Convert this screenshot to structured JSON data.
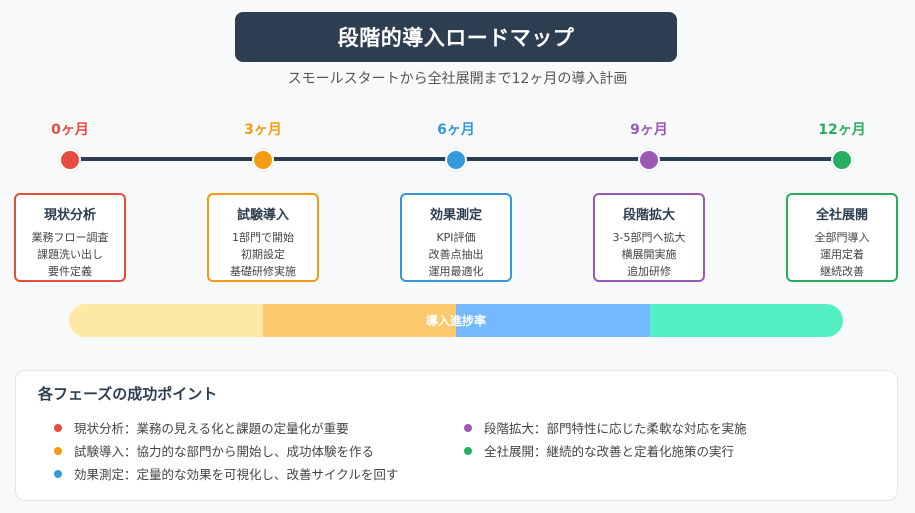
{
  "header": {
    "title": "段階的導入ロードマップ",
    "subtitle": "スモールスタートから全社展開まで12ヶ月の導入計画"
  },
  "milestones": [
    {
      "label": "0ヶ月",
      "color": "#e74c3c"
    },
    {
      "label": "3ヶ月",
      "color": "#f39c12"
    },
    {
      "label": "6ヶ月",
      "color": "#3498db"
    },
    {
      "label": "9ヶ月",
      "color": "#9b59b6"
    },
    {
      "label": "12ヶ月",
      "color": "#27ae60"
    }
  ],
  "phases": [
    {
      "name": "現状分析",
      "items": [
        "業務フロー調査",
        "課題洗い出し",
        "要件定義"
      ],
      "color": "#e74c3c"
    },
    {
      "name": "試験導入",
      "items": [
        "1部門で開始",
        "初期設定",
        "基礎研修実施"
      ],
      "color": "#f39c12"
    },
    {
      "name": "効果測定",
      "items": [
        "KPI評価",
        "改善点抽出",
        "運用最適化"
      ],
      "color": "#3498db"
    },
    {
      "name": "段階拡大",
      "items": [
        "3-5部門へ拡大",
        "横展開実施",
        "追加研修"
      ],
      "color": "#9b59b6"
    },
    {
      "name": "全社展開",
      "items": [
        "全部門導入",
        "運用定着",
        "継続改善"
      ],
      "color": "#27ae60"
    }
  ],
  "progress": {
    "label": "導入進捗率",
    "segments": [
      {
        "color": "#fde8a6",
        "share": 0.25
      },
      {
        "color": "#fdc96e",
        "share": 0.25
      },
      {
        "color": "#74b9ff",
        "share": 0.25
      },
      {
        "color": "#55efc4",
        "share": 0.25
      }
    ]
  },
  "success_points": {
    "title": "各フェーズの成功ポイント",
    "items": [
      {
        "text": "現状分析：業務の見える化と課題の定量化が重要",
        "color": "#e74c3c"
      },
      {
        "text": "試験導入：協力的な部門から開始し、成功体験を作る",
        "color": "#f39c12"
      },
      {
        "text": "効果測定：定量的な効果を可視化し、改善サイクルを回す",
        "color": "#3498db"
      },
      {
        "text": "段階拡大：部門特性に応じた柔軟な対応を実施",
        "color": "#9b59b6"
      },
      {
        "text": "全社展開：継続的な改善と定着化施策の実行",
        "color": "#27ae60"
      }
    ]
  }
}
